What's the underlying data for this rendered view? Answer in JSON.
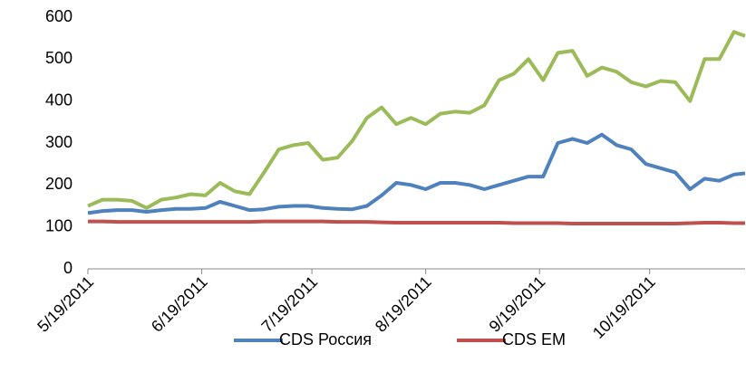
{
  "chart_data": {
    "type": "line",
    "x": [
      "5/19/2011",
      "5/23/2011",
      "5/27/2011",
      "5/31/2011",
      "6/4/2011",
      "6/8/2011",
      "6/12/2011",
      "6/16/2011",
      "6/20/2011",
      "6/24/2011",
      "6/28/2011",
      "7/2/2011",
      "7/6/2011",
      "7/10/2011",
      "7/14/2011",
      "7/18/2011",
      "7/22/2011",
      "7/26/2011",
      "7/30/2011",
      "8/3/2011",
      "8/7/2011",
      "8/11/2011",
      "8/15/2011",
      "8/19/2011",
      "8/23/2011",
      "8/27/2011",
      "8/31/2011",
      "9/4/2011",
      "9/8/2011",
      "9/12/2011",
      "9/16/2011",
      "9/20/2011",
      "9/24/2011",
      "9/28/2011",
      "10/2/2011",
      "10/6/2011",
      "10/10/2011",
      "10/14/2011",
      "10/18/2011",
      "10/22/2011",
      "10/26/2011",
      "10/30/2011",
      "11/3/2011",
      "11/7/2011",
      "11/11/2011",
      "11/14/2011"
    ],
    "series": [
      {
        "name": "CDS Россия",
        "color": "#4f81bd",
        "values": [
          133,
          138,
          140,
          140,
          136,
          140,
          143,
          143,
          145,
          160,
          150,
          140,
          142,
          148,
          150,
          150,
          145,
          143,
          142,
          150,
          175,
          205,
          200,
          190,
          205,
          205,
          200,
          190,
          200,
          210,
          220,
          220,
          300,
          310,
          300,
          320,
          295,
          285,
          250,
          240,
          230,
          190,
          215,
          210,
          225,
          228
        ]
      },
      {
        "name": "CDS EM",
        "color": "#c0504d",
        "values": [
          113,
          113,
          112,
          112,
          112,
          112,
          112,
          112,
          112,
          112,
          112,
          112,
          113,
          113,
          113,
          113,
          113,
          112,
          112,
          112,
          111,
          110,
          110,
          110,
          110,
          110,
          110,
          110,
          110,
          109,
          109,
          109,
          109,
          108,
          108,
          108,
          108,
          108,
          108,
          108,
          108,
          109,
          110,
          110,
          109,
          109
        ]
      },
      {
        "color": "#9bbb59",
        "values": [
          150,
          165,
          165,
          162,
          145,
          165,
          170,
          178,
          175,
          205,
          185,
          178,
          230,
          285,
          295,
          300,
          260,
          265,
          305,
          360,
          385,
          345,
          360,
          345,
          370,
          375,
          372,
          390,
          450,
          465,
          500,
          450,
          515,
          520,
          460,
          480,
          470,
          445,
          435,
          448,
          445,
          400,
          500,
          500,
          565,
          555
        ]
      }
    ],
    "xlim": [
      "5/19/2011",
      "11/14/2011"
    ],
    "xticks": [
      "5/19/2011",
      "6/19/2011",
      "7/19/2011",
      "8/19/2011",
      "9/19/2011",
      "10/19/2011"
    ],
    "ylim": [
      0,
      600
    ],
    "yticks": [
      0,
      100,
      200,
      300,
      400,
      500,
      600
    ],
    "grid": false
  }
}
